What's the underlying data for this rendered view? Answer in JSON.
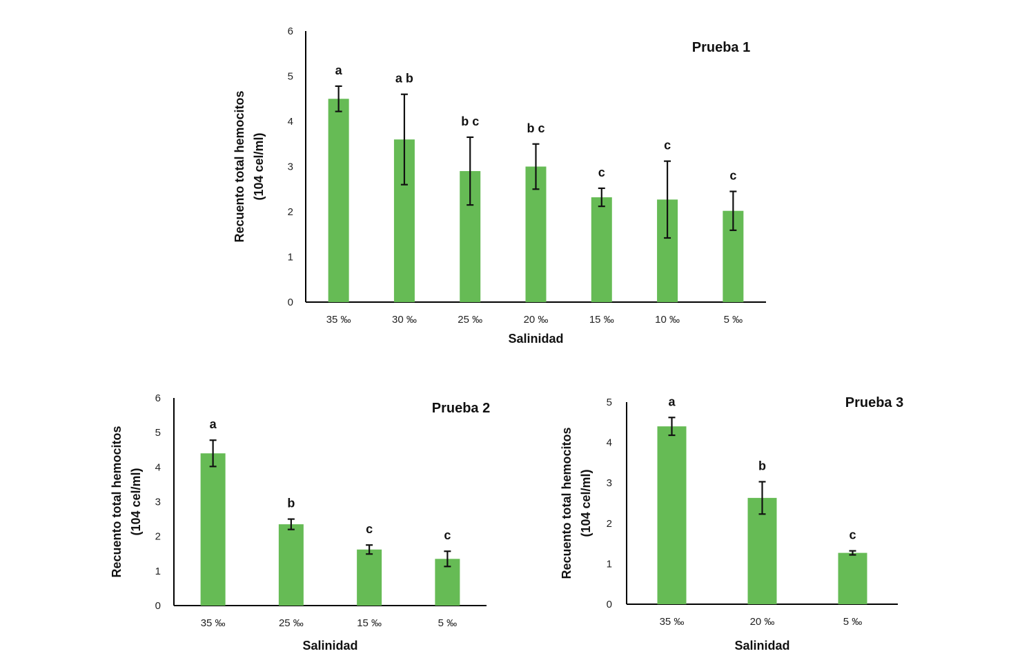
{
  "colors": {
    "bar": "#66bb55",
    "axis": "#000000",
    "error_bar": "#111111"
  },
  "chart_data": [
    {
      "type": "bar",
      "title": "Prueba 1",
      "xlabel": "Salinidad",
      "ylabel_line1": "Recuento total hemocitos",
      "ylabel_line2": "(104 cel/ml)",
      "ylim": [
        0,
        6
      ],
      "yticks": [
        "0",
        "1",
        "2",
        "3",
        "4",
        "5",
        "6"
      ],
      "categories": [
        "35 ‰",
        "30 ‰",
        "25 ‰",
        "20 ‰",
        "15 ‰",
        "10 ‰",
        "5 ‰"
      ],
      "values": [
        4.5,
        3.6,
        2.9,
        3.0,
        2.32,
        2.27,
        2.02
      ],
      "errors": [
        0.28,
        1.0,
        0.75,
        0.5,
        0.2,
        0.85,
        0.43
      ],
      "significance": [
        "a",
        "a b",
        "b c",
        "b c",
        "c",
        "c",
        "c"
      ]
    },
    {
      "type": "bar",
      "title": "Prueba 2",
      "xlabel": "Salinidad",
      "ylabel_line1": "Recuento total hemocitos",
      "ylabel_line2": "(104 cel/ml)",
      "ylim": [
        0,
        6
      ],
      "yticks": [
        "0",
        "1",
        "2",
        "3",
        "4",
        "5",
        "6"
      ],
      "categories": [
        "35 ‰",
        "25 ‰",
        "15 ‰",
        "5 ‰"
      ],
      "values": [
        4.4,
        2.35,
        1.62,
        1.35
      ],
      "errors": [
        0.38,
        0.15,
        0.13,
        0.22
      ],
      "significance": [
        "a",
        "b",
        "c",
        "c"
      ]
    },
    {
      "type": "bar",
      "title": "Prueba 3",
      "xlabel": "Salinidad",
      "ylabel_line1": "Recuento total hemocitos",
      "ylabel_line2": "(104 cel/ml)",
      "ylim": [
        0,
        5
      ],
      "yticks": [
        "0",
        "1",
        "2",
        "3",
        "4",
        "5"
      ],
      "categories": [
        "35 ‰",
        "20 ‰",
        "5 ‰"
      ],
      "values": [
        4.4,
        2.63,
        1.27
      ],
      "errors": [
        0.22,
        0.4,
        0.05
      ],
      "significance": [
        "a",
        "b",
        "c"
      ]
    }
  ]
}
